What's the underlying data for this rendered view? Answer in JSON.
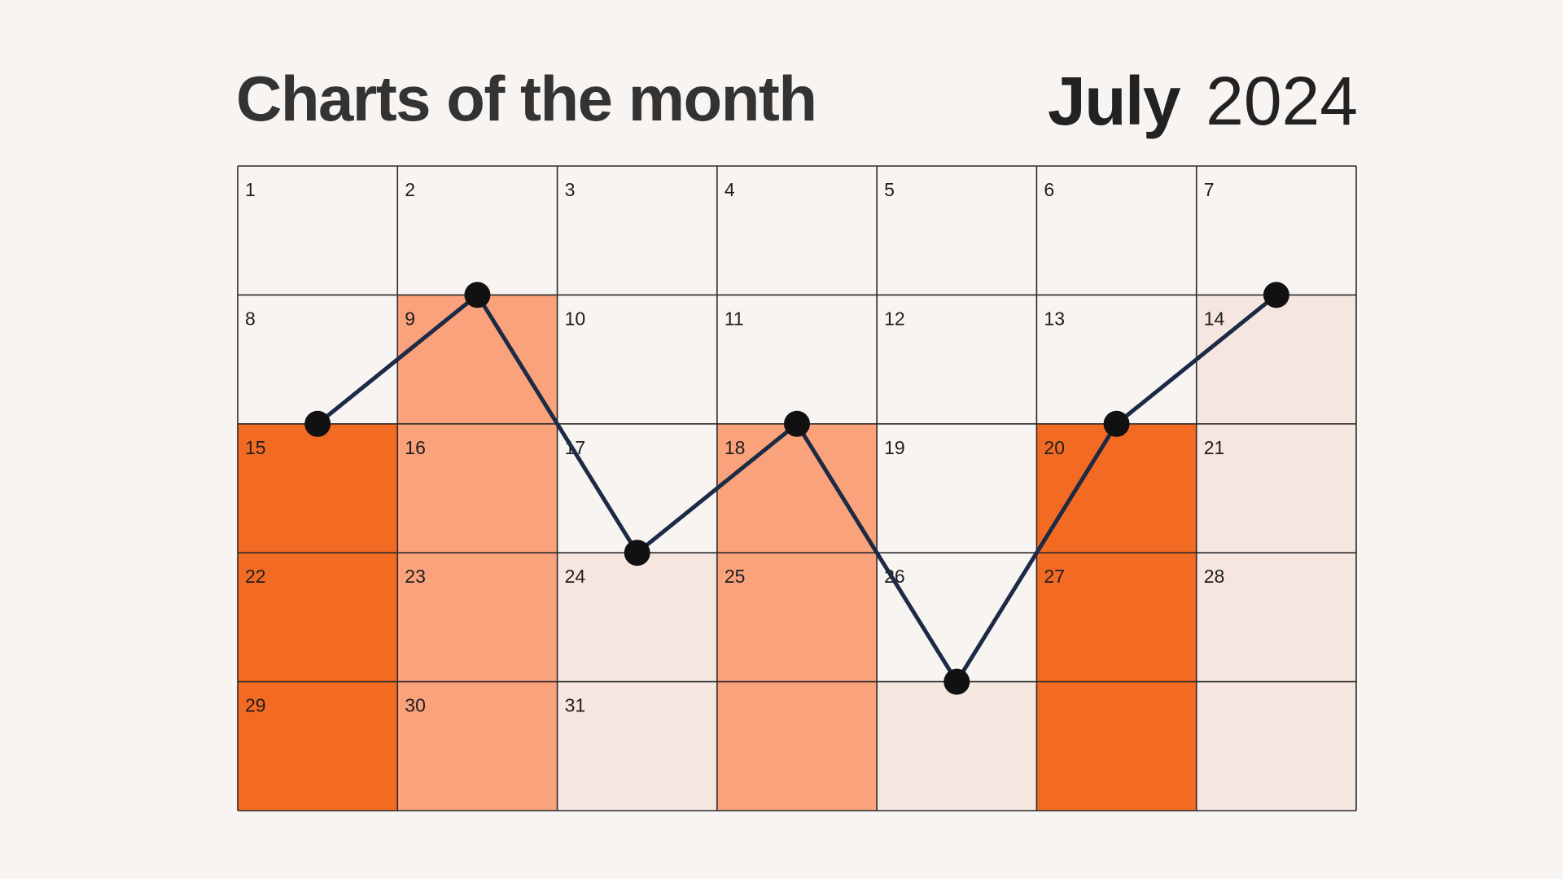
{
  "header": {
    "title": "Charts of the month",
    "month": "July",
    "year": "2024"
  },
  "calendar": {
    "columns": 7,
    "rows": 5,
    "days": [
      "1",
      "2",
      "3",
      "4",
      "5",
      "6",
      "7",
      "8",
      "9",
      "10",
      "11",
      "12",
      "13",
      "14",
      "15",
      "16",
      "17",
      "18",
      "19",
      "20",
      "21",
      "22",
      "23",
      "24",
      "25",
      "26",
      "27",
      "28",
      "29",
      "30",
      "31"
    ]
  },
  "chart_data": {
    "type": "bar",
    "description_free": true,
    "columns": [
      1,
      2,
      3,
      4,
      5,
      6,
      7
    ],
    "bar_levels": [
      3,
      4,
      2,
      3,
      1,
      3,
      4
    ],
    "bar_colors": [
      "#f36a22",
      "#f9a27c",
      "#f5e6df",
      "#f9a27c",
      "#f5e6df",
      "#f36a22",
      "#f5e6df"
    ],
    "line": {
      "x": [
        1,
        2,
        3,
        4,
        5,
        6,
        7
      ],
      "y": [
        3,
        4,
        2,
        3,
        1,
        3,
        4
      ],
      "color": "#1c2a45",
      "point_color": "#111111"
    },
    "ylim": [
      0,
      5
    ]
  },
  "colors": {
    "background": "#f8f4f2",
    "grid": "#2a2a2a"
  }
}
